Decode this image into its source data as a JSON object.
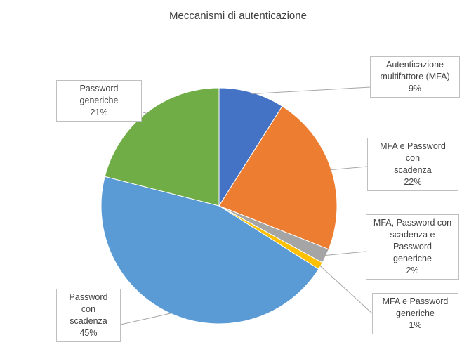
{
  "chart_data": {
    "type": "pie",
    "title": "Meccanismi di autenticazione",
    "start_angle_deg": 0,
    "direction": "clockwise",
    "slices": [
      {
        "lines": [
          "Autenticazione",
          "multifattore (MFA)"
        ],
        "value": 9,
        "value_label": "9%",
        "color": "#4472c4"
      },
      {
        "lines": [
          "MFA e Password con",
          "scadenza"
        ],
        "value": 22,
        "value_label": "22%",
        "color": "#ed7d31"
      },
      {
        "lines": [
          "MFA, Password con",
          "scadenza e Password",
          "generiche"
        ],
        "value": 2,
        "value_label": "2%",
        "color": "#a5a5a5"
      },
      {
        "lines": [
          "MFA e Password",
          "generiche"
        ],
        "value": 1,
        "value_label": "1%",
        "color": "#ffc000"
      },
      {
        "lines": [
          "Password con",
          "scadenza"
        ],
        "value": 45,
        "value_label": "45%",
        "color": "#5b9bd5"
      },
      {
        "lines": [
          "Password generiche"
        ],
        "value": 21,
        "value_label": "21%",
        "color": "#70ad47"
      }
    ]
  }
}
